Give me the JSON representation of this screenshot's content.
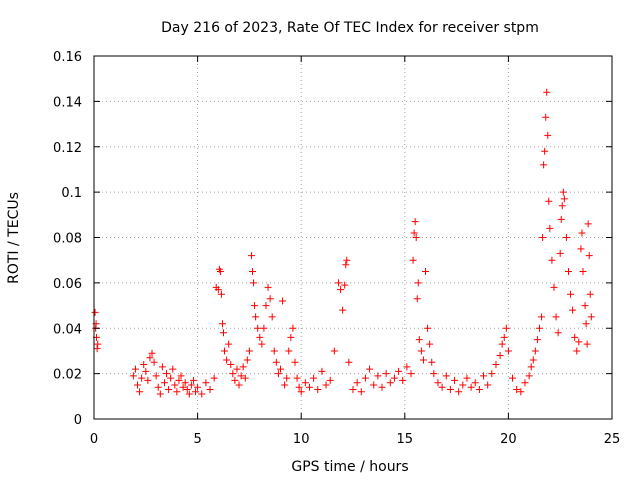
{
  "chart_data": {
    "type": "scatter",
    "title": "Day 216 of 2023, Rate Of TEC Index for receiver stpm",
    "xlabel": "GPS time / hours",
    "ylabel": "ROTI / TECUs",
    "xlim": [
      0,
      25
    ],
    "ylim": [
      0,
      0.16
    ],
    "xticks": [
      0,
      5,
      10,
      15,
      20,
      25
    ],
    "yticks": [
      0,
      0.02,
      0.04,
      0.06,
      0.08,
      0.1,
      0.12,
      0.14,
      0.16
    ],
    "xtick_labels": [
      "0",
      "5",
      "10",
      "15",
      "20",
      "25"
    ],
    "ytick_labels": [
      "0",
      "0.02",
      "0.04",
      "0.06",
      "0.08",
      "0.1",
      "0.12",
      "0.14",
      "0.16"
    ],
    "grid": true,
    "marker": "+",
    "marker_color": "#ff0000",
    "series": [
      {
        "name": "ROTI",
        "points": [
          [
            0.05,
            0.047
          ],
          [
            0.1,
            0.042
          ],
          [
            0.12,
            0.036
          ],
          [
            0.15,
            0.031
          ],
          [
            0.08,
            0.04
          ],
          [
            0.18,
            0.033
          ],
          [
            1.9,
            0.019
          ],
          [
            2.0,
            0.022
          ],
          [
            2.1,
            0.015
          ],
          [
            2.2,
            0.012
          ],
          [
            2.3,
            0.018
          ],
          [
            2.4,
            0.024
          ],
          [
            2.5,
            0.021
          ],
          [
            2.6,
            0.017
          ],
          [
            2.7,
            0.027
          ],
          [
            2.8,
            0.029
          ],
          [
            2.9,
            0.025
          ],
          [
            3.0,
            0.019
          ],
          [
            3.1,
            0.014
          ],
          [
            3.2,
            0.011
          ],
          [
            3.3,
            0.023
          ],
          [
            3.4,
            0.016
          ],
          [
            3.5,
            0.02
          ],
          [
            3.6,
            0.013
          ],
          [
            3.7,
            0.018
          ],
          [
            3.8,
            0.022
          ],
          [
            3.9,
            0.015
          ],
          [
            4.0,
            0.012
          ],
          [
            4.1,
            0.017
          ],
          [
            4.2,
            0.019
          ],
          [
            4.3,
            0.014
          ],
          [
            4.4,
            0.016
          ],
          [
            4.5,
            0.013
          ],
          [
            4.6,
            0.011
          ],
          [
            4.7,
            0.015
          ],
          [
            4.8,
            0.017
          ],
          [
            4.9,
            0.012
          ],
          [
            5.0,
            0.014
          ],
          [
            5.2,
            0.011
          ],
          [
            5.4,
            0.016
          ],
          [
            5.6,
            0.013
          ],
          [
            5.8,
            0.018
          ],
          [
            5.9,
            0.058
          ],
          [
            6.0,
            0.057
          ],
          [
            6.05,
            0.066
          ],
          [
            6.1,
            0.065
          ],
          [
            6.15,
            0.055
          ],
          [
            6.2,
            0.042
          ],
          [
            6.25,
            0.038
          ],
          [
            6.3,
            0.03
          ],
          [
            6.4,
            0.026
          ],
          [
            6.5,
            0.033
          ],
          [
            6.6,
            0.024
          ],
          [
            6.7,
            0.02
          ],
          [
            6.8,
            0.017
          ],
          [
            6.9,
            0.022
          ],
          [
            7.0,
            0.015
          ],
          [
            7.1,
            0.019
          ],
          [
            7.2,
            0.023
          ],
          [
            7.3,
            0.018
          ],
          [
            7.4,
            0.026
          ],
          [
            7.5,
            0.03
          ],
          [
            7.6,
            0.072
          ],
          [
            7.65,
            0.065
          ],
          [
            7.7,
            0.06
          ],
          [
            7.75,
            0.05
          ],
          [
            7.8,
            0.045
          ],
          [
            7.9,
            0.04
          ],
          [
            8.0,
            0.036
          ],
          [
            8.1,
            0.033
          ],
          [
            8.2,
            0.04
          ],
          [
            8.3,
            0.05
          ],
          [
            8.4,
            0.058
          ],
          [
            8.5,
            0.053
          ],
          [
            8.6,
            0.045
          ],
          [
            8.7,
            0.03
          ],
          [
            8.8,
            0.025
          ],
          [
            8.9,
            0.02
          ],
          [
            9.0,
            0.022
          ],
          [
            9.1,
            0.052
          ],
          [
            9.2,
            0.015
          ],
          [
            9.3,
            0.018
          ],
          [
            9.4,
            0.03
          ],
          [
            9.5,
            0.036
          ],
          [
            9.6,
            0.04
          ],
          [
            9.7,
            0.025
          ],
          [
            9.8,
            0.018
          ],
          [
            9.9,
            0.014
          ],
          [
            10.0,
            0.012
          ],
          [
            10.2,
            0.016
          ],
          [
            10.4,
            0.014
          ],
          [
            10.6,
            0.018
          ],
          [
            10.8,
            0.013
          ],
          [
            11.0,
            0.021
          ],
          [
            11.2,
            0.015
          ],
          [
            11.4,
            0.017
          ],
          [
            11.6,
            0.03
          ],
          [
            11.8,
            0.06
          ],
          [
            11.9,
            0.057
          ],
          [
            12.0,
            0.048
          ],
          [
            12.1,
            0.059
          ],
          [
            12.15,
            0.068
          ],
          [
            12.2,
            0.07
          ],
          [
            12.3,
            0.025
          ],
          [
            12.5,
            0.013
          ],
          [
            12.7,
            0.016
          ],
          [
            12.9,
            0.012
          ],
          [
            13.1,
            0.018
          ],
          [
            13.3,
            0.022
          ],
          [
            13.5,
            0.015
          ],
          [
            13.7,
            0.019
          ],
          [
            13.9,
            0.014
          ],
          [
            14.1,
            0.02
          ],
          [
            14.3,
            0.016
          ],
          [
            14.5,
            0.018
          ],
          [
            14.7,
            0.021
          ],
          [
            14.9,
            0.017
          ],
          [
            15.1,
            0.023
          ],
          [
            15.3,
            0.02
          ],
          [
            15.4,
            0.07
          ],
          [
            15.45,
            0.082
          ],
          [
            15.5,
            0.087
          ],
          [
            15.55,
            0.08
          ],
          [
            15.6,
            0.053
          ],
          [
            15.65,
            0.06
          ],
          [
            15.7,
            0.035
          ],
          [
            15.8,
            0.03
          ],
          [
            15.9,
            0.026
          ],
          [
            16.0,
            0.065
          ],
          [
            16.1,
            0.04
          ],
          [
            16.2,
            0.033
          ],
          [
            16.3,
            0.025
          ],
          [
            16.4,
            0.02
          ],
          [
            16.6,
            0.016
          ],
          [
            16.8,
            0.014
          ],
          [
            17.0,
            0.019
          ],
          [
            17.2,
            0.013
          ],
          [
            17.4,
            0.017
          ],
          [
            17.6,
            0.012
          ],
          [
            17.8,
            0.015
          ],
          [
            18.0,
            0.018
          ],
          [
            18.2,
            0.014
          ],
          [
            18.4,
            0.016
          ],
          [
            18.6,
            0.013
          ],
          [
            18.8,
            0.019
          ],
          [
            19.0,
            0.015
          ],
          [
            19.2,
            0.02
          ],
          [
            19.4,
            0.024
          ],
          [
            19.6,
            0.028
          ],
          [
            19.7,
            0.033
          ],
          [
            19.8,
            0.036
          ],
          [
            19.9,
            0.04
          ],
          [
            20.0,
            0.03
          ],
          [
            20.2,
            0.018
          ],
          [
            20.4,
            0.013
          ],
          [
            20.6,
            0.012
          ],
          [
            20.8,
            0.016
          ],
          [
            21.0,
            0.019
          ],
          [
            21.1,
            0.023
          ],
          [
            21.2,
            0.026
          ],
          [
            21.3,
            0.03
          ],
          [
            21.4,
            0.035
          ],
          [
            21.5,
            0.04
          ],
          [
            21.6,
            0.045
          ],
          [
            21.65,
            0.08
          ],
          [
            21.7,
            0.112
          ],
          [
            21.75,
            0.118
          ],
          [
            21.8,
            0.133
          ],
          [
            21.85,
            0.144
          ],
          [
            21.9,
            0.125
          ],
          [
            21.95,
            0.096
          ],
          [
            22.0,
            0.084
          ],
          [
            22.1,
            0.07
          ],
          [
            22.2,
            0.058
          ],
          [
            22.3,
            0.045
          ],
          [
            22.4,
            0.038
          ],
          [
            22.5,
            0.073
          ],
          [
            22.55,
            0.088
          ],
          [
            22.6,
            0.094
          ],
          [
            22.65,
            0.1
          ],
          [
            22.7,
            0.097
          ],
          [
            22.8,
            0.08
          ],
          [
            22.9,
            0.065
          ],
          [
            23.0,
            0.055
          ],
          [
            23.1,
            0.048
          ],
          [
            23.2,
            0.036
          ],
          [
            23.3,
            0.03
          ],
          [
            23.4,
            0.034
          ],
          [
            23.5,
            0.075
          ],
          [
            23.55,
            0.082
          ],
          [
            23.6,
            0.065
          ],
          [
            23.7,
            0.05
          ],
          [
            23.75,
            0.042
          ],
          [
            23.8,
            0.033
          ],
          [
            23.85,
            0.086
          ],
          [
            23.9,
            0.072
          ],
          [
            23.95,
            0.055
          ],
          [
            24.0,
            0.045
          ]
        ]
      }
    ]
  }
}
